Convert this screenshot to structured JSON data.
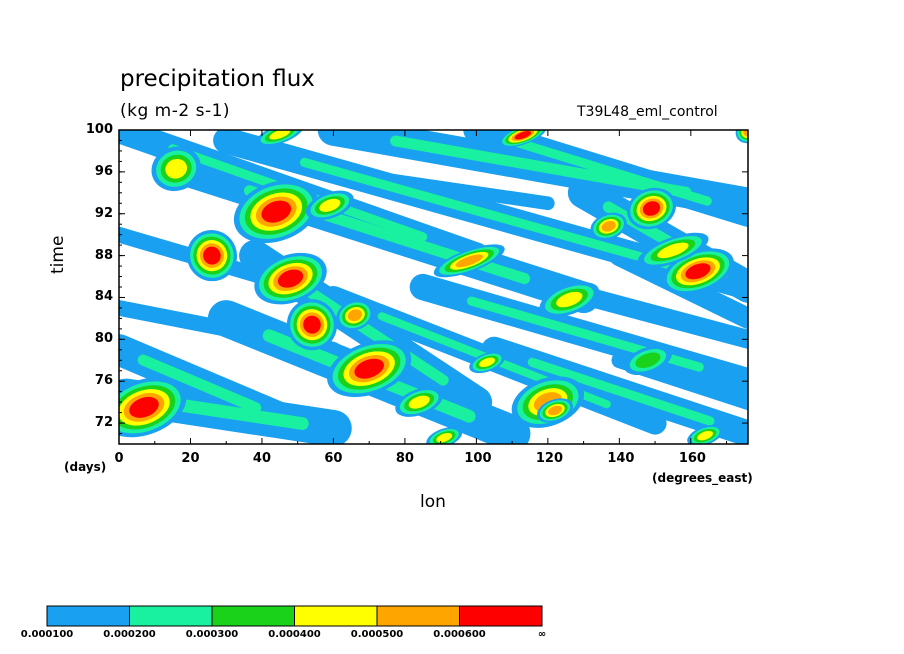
{
  "chart_data": {
    "type": "heatmap",
    "title": "precipitation flux",
    "units": "(kg m-2 s-1)",
    "run_label": "T39L48_eml_control",
    "xlabel": "lon",
    "x_units": "(degrees_east)",
    "ylabel": "time",
    "y_units": "(days)",
    "xlim": [
      0,
      176
    ],
    "ylim": [
      70,
      100
    ],
    "x_ticks": [
      "0",
      "20",
      "40",
      "60",
      "80",
      "100",
      "120",
      "140",
      "160"
    ],
    "x_tick_values": [
      0,
      20,
      40,
      60,
      80,
      100,
      120,
      140,
      160
    ],
    "y_ticks": [
      "72",
      "76",
      "80",
      "84",
      "88",
      "92",
      "96",
      "100"
    ],
    "y_tick_values": [
      72,
      76,
      80,
      84,
      88,
      92,
      96,
      100
    ],
    "contour_levels": [
      "0.000100",
      "0.000200",
      "0.000300",
      "0.000400",
      "0.000500",
      "0.000600",
      "∞"
    ],
    "level_colors": [
      "#19a0f0",
      "#19f0a0",
      "#19d219",
      "#ffff00",
      "#ffa500",
      "#ff0000"
    ],
    "bands": [
      {
        "x0": 2,
        "y0": 74.5,
        "x1": 60,
        "y1": 71.5,
        "w": 3.5
      },
      {
        "x0": 0,
        "y0": 79,
        "x1": 45,
        "y1": 72.5,
        "w": 3
      },
      {
        "x0": 30,
        "y0": 82,
        "x1": 110,
        "y1": 71,
        "w": 3.5
      },
      {
        "x0": 38,
        "y0": 88,
        "x1": 100,
        "y1": 74,
        "w": 3
      },
      {
        "x0": 20,
        "y0": 96,
        "x1": 130,
        "y1": 84,
        "w": 3
      },
      {
        "x0": 0,
        "y0": 100,
        "x1": 100,
        "y1": 88,
        "w": 2.5
      },
      {
        "x0": 30,
        "y0": 99,
        "x1": 176,
        "y1": 85,
        "w": 2.5
      },
      {
        "x0": 60,
        "y0": 100,
        "x1": 176,
        "y1": 93,
        "w": 3
      },
      {
        "x0": 100,
        "y0": 100,
        "x1": 176,
        "y1": 92,
        "w": 2.5
      },
      {
        "x0": 130,
        "y0": 94,
        "x1": 176,
        "y1": 85,
        "w": 3
      },
      {
        "x0": 85,
        "y0": 85,
        "x1": 176,
        "y1": 76,
        "w": 2.5
      },
      {
        "x0": 105,
        "y0": 79,
        "x1": 176,
        "y1": 71,
        "w": 2.5
      },
      {
        "x0": 60,
        "y0": 84,
        "x1": 150,
        "y1": 72,
        "w": 2.2
      },
      {
        "x0": 0,
        "y0": 83,
        "x1": 60,
        "y1": 79,
        "w": 1.5
      },
      {
        "x0": 110,
        "y0": 86,
        "x1": 176,
        "y1": 80,
        "w": 1.8
      },
      {
        "x0": 140,
        "y0": 88,
        "x1": 176,
        "y1": 82,
        "w": 2
      },
      {
        "x0": 0,
        "y0": 90,
        "x1": 40,
        "y1": 86,
        "w": 1.5
      },
      {
        "x0": 60,
        "y0": 96,
        "x1": 120,
        "y1": 93,
        "w": 1.3
      },
      {
        "x0": 140,
        "y0": 78,
        "x1": 176,
        "y1": 74,
        "w": 1.5
      }
    ],
    "blobs": [
      {
        "x": 7,
        "y": 73.5,
        "l": 6,
        "rx": 7,
        "ry": 1.5
      },
      {
        "x": 16,
        "y": 96.3,
        "l": 4,
        "rx": 4,
        "ry": 1.2
      },
      {
        "x": 26,
        "y": 88,
        "l": 6,
        "rx": 4,
        "ry": 1.4
      },
      {
        "x": 44,
        "y": 92.2,
        "l": 6,
        "rx": 7,
        "ry": 1.6
      },
      {
        "x": 48,
        "y": 85.8,
        "l": 6,
        "rx": 6,
        "ry": 1.3
      },
      {
        "x": 54,
        "y": 81.4,
        "l": 6,
        "rx": 4,
        "ry": 1.4
      },
      {
        "x": 70,
        "y": 77.2,
        "l": 6,
        "rx": 7,
        "ry": 1.4
      },
      {
        "x": 66,
        "y": 82.3,
        "l": 5,
        "rx": 3,
        "ry": 0.8
      },
      {
        "x": 59,
        "y": 92.8,
        "l": 4,
        "rx": 4,
        "ry": 0.7
      },
      {
        "x": 98,
        "y": 87.5,
        "l": 5,
        "rx": 6,
        "ry": 0.6
      },
      {
        "x": 120,
        "y": 74,
        "l": 5,
        "rx": 6,
        "ry": 1.3
      },
      {
        "x": 122,
        "y": 73.2,
        "l": 5,
        "rx": 3,
        "ry": 0.6
      },
      {
        "x": 126,
        "y": 83.8,
        "l": 4,
        "rx": 5,
        "ry": 0.8
      },
      {
        "x": 137,
        "y": 90.8,
        "l": 5,
        "rx": 3,
        "ry": 0.7
      },
      {
        "x": 149,
        "y": 92.5,
        "l": 6,
        "rx": 4,
        "ry": 1.1
      },
      {
        "x": 162,
        "y": 86.5,
        "l": 6,
        "rx": 6,
        "ry": 1.1
      },
      {
        "x": 155,
        "y": 88.5,
        "l": 4,
        "rx": 6,
        "ry": 0.7
      },
      {
        "x": 113,
        "y": 99.5,
        "l": 6,
        "rx": 4,
        "ry": 0.5
      },
      {
        "x": 91,
        "y": 70.6,
        "l": 4,
        "rx": 3,
        "ry": 0.5
      },
      {
        "x": 103,
        "y": 77.8,
        "l": 4,
        "rx": 3,
        "ry": 0.5
      },
      {
        "x": 148,
        "y": 78,
        "l": 3,
        "rx": 4,
        "ry": 0.7
      },
      {
        "x": 84,
        "y": 74,
        "l": 4,
        "rx": 4,
        "ry": 0.7
      },
      {
        "x": 176,
        "y": 99.8,
        "l": 5,
        "rx": 2,
        "ry": 0.6
      },
      {
        "x": 45,
        "y": 99.6,
        "l": 4,
        "rx": 4,
        "ry": 0.5
      },
      {
        "x": 164,
        "y": 70.8,
        "l": 4,
        "rx": 3,
        "ry": 0.5
      }
    ]
  }
}
